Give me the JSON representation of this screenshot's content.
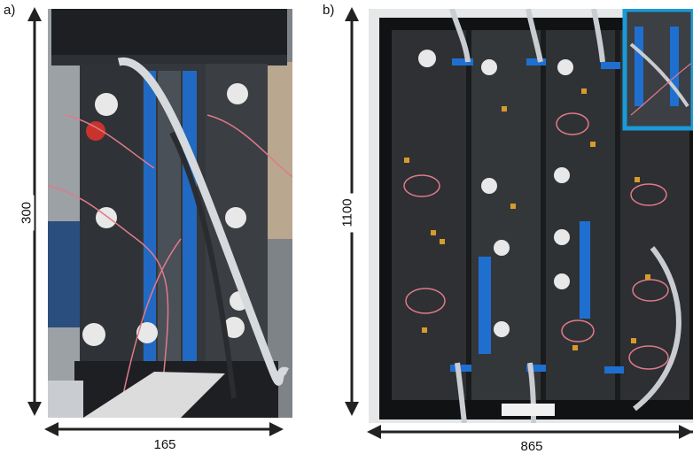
{
  "panels": [
    {
      "label": "a)",
      "height_label": "300",
      "width_label": "165"
    },
    {
      "label": "b)",
      "height_label": "1100",
      "width_label": "865"
    }
  ],
  "colors": {
    "specimen_dark": "#2b2d30",
    "tape_blue": "#1f6fd1",
    "inset_frame": "#1a9ad6",
    "strap_grey": "#c9ccd1",
    "frame_black": "#111214"
  }
}
